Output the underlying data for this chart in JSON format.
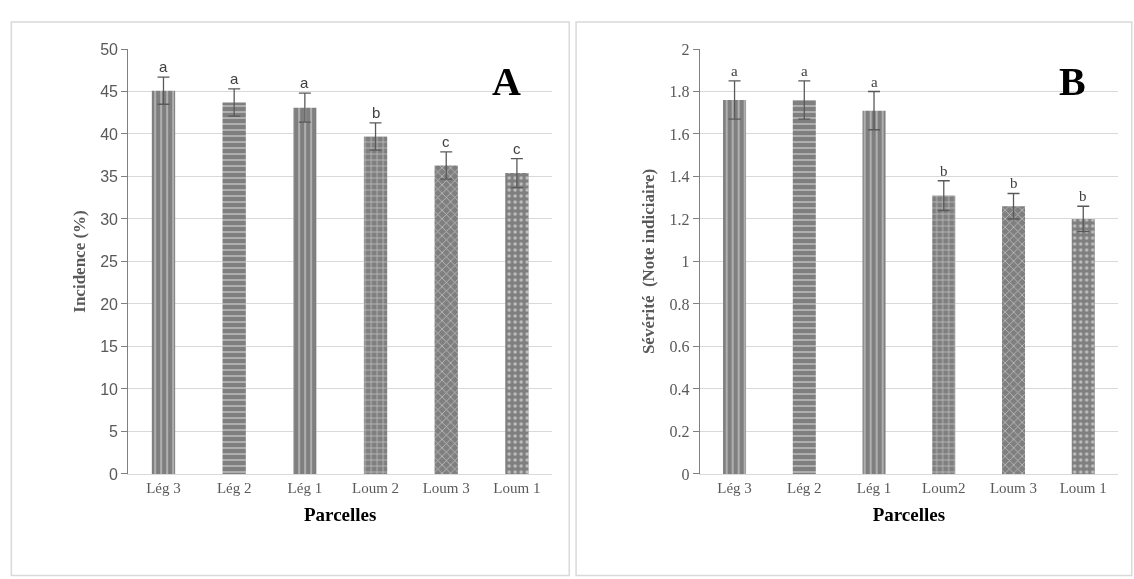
{
  "chart_data": [
    {
      "type": "bar",
      "title": "A",
      "xlabel": "Parcelles",
      "ylabel": "Incidence (%)",
      "categories": [
        "Lég 3",
        "Lég 2",
        "Lég 1",
        "Loum 2",
        "Loum 3",
        "Loum 1"
      ],
      "values": [
        45.1,
        43.7,
        43.1,
        39.7,
        36.3,
        35.4
      ],
      "errors": [
        1.6,
        1.6,
        1.7,
        1.6,
        1.6,
        1.7
      ],
      "color": "#7f7f7f",
      "ylim": [
        0,
        50
      ],
      "yticks": [
        0,
        5,
        10,
        15,
        20,
        25,
        30,
        35,
        40,
        45,
        50
      ],
      "grid": "y",
      "annotations": [
        {
          "text": "a",
          "x": "Lég 3",
          "y": 46.7
        },
        {
          "text": "a",
          "x": "Lég 2",
          "y": 45.3
        },
        {
          "text": "a",
          "x": "Lég 1",
          "y": 44.8
        },
        {
          "text": "b",
          "x": "Loum 2",
          "y": 41.3
        },
        {
          "text": "c",
          "x": "Loum 3",
          "y": 37.9
        },
        {
          "text": "c",
          "x": "Loum 1",
          "y": 37.1
        }
      ]
    },
    {
      "type": "bar",
      "title": "B",
      "xlabel": "Parcelles",
      "ylabel": "Sévérité  (Note indiciaire)",
      "categories": [
        "Lég 3",
        "Lég 2",
        "Lég 1",
        "Loum2",
        "Loum 3",
        "Loum 1"
      ],
      "values": [
        1.76,
        1.76,
        1.71,
        1.31,
        1.26,
        1.2
      ],
      "errors": [
        0.09,
        0.09,
        0.09,
        0.07,
        0.06,
        0.06
      ],
      "color": "#7f7f7f",
      "ylim": [
        0,
        2
      ],
      "yticks": [
        0,
        0.2,
        0.4,
        0.6,
        0.8,
        1,
        1.2,
        1.4,
        1.6,
        1.8,
        2
      ],
      "grid": "y",
      "annotations": [
        {
          "text": "a",
          "x": "Lég 3",
          "y": 1.85
        },
        {
          "text": "a",
          "x": "Lég 2",
          "y": 1.85
        },
        {
          "text": "a",
          "x": "Lég 1",
          "y": 1.8
        },
        {
          "text": "b",
          "x": "Loum2",
          "y": 1.38
        },
        {
          "text": "b",
          "x": "Loum 3",
          "y": 1.32
        },
        {
          "text": "b",
          "x": "Loum 1",
          "y": 1.26
        }
      ]
    }
  ]
}
